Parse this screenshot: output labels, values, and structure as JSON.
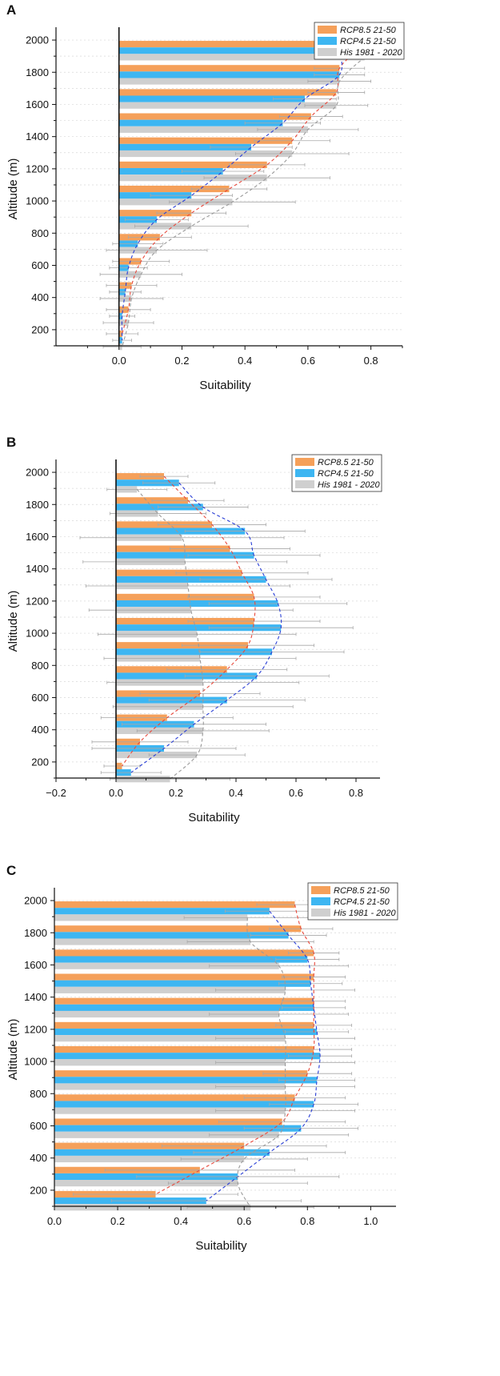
{
  "colors": {
    "rcp85": "#f5a05a",
    "rcp45": "#3db6f2",
    "his": "#cfcfcf",
    "rcp85_line": "#e8483b",
    "rcp45_line": "#2a3fd6",
    "his_line": "#9a9a9a",
    "error": "#a8a8a8"
  },
  "chart_data": [
    {
      "type": "bar",
      "orientation": "horizontal",
      "panel": "A",
      "xlabel": "Suitability",
      "ylabel": "Altitude (m)",
      "xlim": [
        -0.2,
        0.9
      ],
      "ylim": [
        100,
        2050
      ],
      "xticks": [
        0.0,
        0.2,
        0.4,
        0.6,
        0.8
      ],
      "xtick_labels": [
        "0.0",
        "0.2",
        "0.4",
        "0.6",
        "0.8"
      ],
      "yticks": [
        200,
        400,
        600,
        800,
        1000,
        1200,
        1400,
        1600,
        1800,
        2000
      ],
      "ytick_labels": [
        "200",
        "400",
        "600",
        "800",
        "1000",
        "1200",
        "1400",
        "1600",
        "1800",
        "2000"
      ],
      "legend": [
        "RCP8.5 21-50",
        "RCP4.5 21-50",
        "His 1981 - 2020"
      ],
      "legend_position": "top-right",
      "altitudes": [
        2000,
        1850,
        1700,
        1550,
        1400,
        1250,
        1100,
        950,
        800,
        650,
        500,
        350,
        200
      ],
      "series": [
        {
          "name": "RCP8.5 21-50",
          "values": [
            0.78,
            0.7,
            0.69,
            0.61,
            0.55,
            0.47,
            0.35,
            0.23,
            0.13,
            0.07,
            0.04,
            0.03,
            0.01
          ],
          "errors": [
            0.08,
            0.08,
            0.09,
            0.1,
            0.12,
            0.12,
            0.12,
            0.11,
            0.1,
            0.09,
            0.08,
            0.07,
            0.05
          ]
        },
        {
          "name": "RCP4.5 21-50",
          "values": [
            0.7,
            0.7,
            0.59,
            0.52,
            0.42,
            0.33,
            0.23,
            0.12,
            0.06,
            0.03,
            0.02,
            0.01,
            0.01
          ],
          "errors": [
            0.08,
            0.08,
            0.1,
            0.12,
            0.13,
            0.13,
            0.13,
            0.1,
            0.08,
            0.06,
            0.05,
            0.04,
            0.03
          ]
        },
        {
          "name": "His 1981 - 2020",
          "values": [
            0.78,
            0.7,
            0.69,
            0.6,
            0.55,
            0.47,
            0.36,
            0.23,
            0.12,
            0.07,
            0.04,
            0.03,
            0.01
          ],
          "errors": [
            0.08,
            0.1,
            0.1,
            0.16,
            0.18,
            0.2,
            0.2,
            0.18,
            0.16,
            0.13,
            0.1,
            0.08,
            0.06
          ]
        }
      ]
    },
    {
      "type": "bar",
      "orientation": "horizontal",
      "panel": "B",
      "xlabel": "Suitability",
      "ylabel": "Altitude (m)",
      "xlim": [
        -0.2,
        0.88
      ],
      "ylim": [
        100,
        2050
      ],
      "xticks": [
        -0.2,
        0.0,
        0.2,
        0.4,
        0.6,
        0.8
      ],
      "xtick_labels": [
        "−0.2",
        "0.0",
        "0.2",
        "0.4",
        "0.6",
        "0.8"
      ],
      "yticks": [
        200,
        400,
        600,
        800,
        1000,
        1200,
        1400,
        1600,
        1800,
        2000
      ],
      "ytick_labels": [
        "200",
        "400",
        "600",
        "800",
        "1000",
        "1200",
        "1400",
        "1600",
        "1800",
        "2000"
      ],
      "legend": [
        "RCP8.5 21-50",
        "RCP4.5 21-50",
        "His 1981 - 2020"
      ],
      "legend_position": "top-right",
      "altitudes": [
        2000,
        1850,
        1700,
        1550,
        1400,
        1250,
        1100,
        950,
        800,
        650,
        500,
        350,
        200
      ],
      "series": [
        {
          "name": "RCP8.5 21-50",
          "values": [
            0.16,
            0.24,
            0.32,
            0.38,
            0.42,
            0.46,
            0.46,
            0.44,
            0.37,
            0.28,
            0.17,
            0.08,
            0.02
          ],
          "errors": [
            0.08,
            0.12,
            0.18,
            0.2,
            0.22,
            0.22,
            0.22,
            0.22,
            0.2,
            0.2,
            0.22,
            0.16,
            0.06
          ]
        },
        {
          "name": "RCP4.5 21-50",
          "values": [
            0.21,
            0.29,
            0.43,
            0.46,
            0.5,
            0.54,
            0.55,
            0.52,
            0.47,
            0.37,
            0.26,
            0.16,
            0.05
          ],
          "errors": [
            0.12,
            0.15,
            0.2,
            0.22,
            0.22,
            0.23,
            0.24,
            0.24,
            0.24,
            0.26,
            0.24,
            0.24,
            0.1
          ]
        },
        {
          "name": "His 1981 - 2020",
          "values": [
            0.07,
            0.14,
            0.22,
            0.23,
            0.24,
            0.25,
            0.27,
            0.28,
            0.29,
            0.29,
            0.29,
            0.27,
            0.18
          ],
          "errors": [
            0.1,
            0.16,
            0.34,
            0.34,
            0.34,
            0.34,
            0.33,
            0.32,
            0.32,
            0.3,
            0.22,
            0.16,
            0.2
          ]
        }
      ]
    },
    {
      "type": "bar",
      "orientation": "horizontal",
      "panel": "C",
      "xlabel": "Suitability",
      "ylabel": "Altitude (m)",
      "xlim": [
        0.0,
        1.08
      ],
      "ylim": [
        100,
        2050
      ],
      "xticks": [
        0.0,
        0.2,
        0.4,
        0.6,
        0.8,
        1.0
      ],
      "xtick_labels": [
        "0.0",
        "0.2",
        "0.4",
        "0.6",
        "0.8",
        "1.0"
      ],
      "yticks": [
        200,
        400,
        600,
        800,
        1000,
        1200,
        1400,
        1600,
        1800,
        2000
      ],
      "ytick_labels": [
        "200",
        "400",
        "600",
        "800",
        "1000",
        "1200",
        "1400",
        "1600",
        "1800",
        "2000"
      ],
      "legend": [
        "RCP8.5 21-50",
        "RCP4.5 21-50",
        "His 1981 - 2020"
      ],
      "legend_position": "top-right",
      "altitudes": [
        2000,
        1850,
        1700,
        1550,
        1400,
        1250,
        1100,
        950,
        800,
        650,
        500,
        350,
        200
      ],
      "series": [
        {
          "name": "RCP8.5 21-50",
          "values": [
            0.76,
            0.78,
            0.82,
            0.82,
            0.82,
            0.82,
            0.82,
            0.8,
            0.76,
            0.72,
            0.6,
            0.46,
            0.32
          ],
          "errors": [
            0.12,
            0.1,
            0.08,
            0.1,
            0.1,
            0.12,
            0.12,
            0.14,
            0.16,
            0.2,
            0.26,
            0.3,
            0.26
          ]
        },
        {
          "name": "RCP4.5 21-50",
          "values": [
            0.68,
            0.74,
            0.8,
            0.81,
            0.82,
            0.83,
            0.84,
            0.83,
            0.82,
            0.78,
            0.68,
            0.58,
            0.48
          ],
          "errors": [
            0.14,
            0.12,
            0.1,
            0.1,
            0.1,
            0.1,
            0.1,
            0.12,
            0.14,
            0.18,
            0.24,
            0.32,
            0.3
          ]
        },
        {
          "name": "His 1981 - 2020",
          "values": [
            0.61,
            0.62,
            0.71,
            0.73,
            0.71,
            0.73,
            0.73,
            0.73,
            0.73,
            0.71,
            0.6,
            0.58,
            0.62
          ],
          "errors": [
            0.2,
            0.2,
            0.22,
            0.22,
            0.22,
            0.22,
            0.22,
            0.22,
            0.22,
            0.22,
            0.2,
            0.22,
            0.2
          ]
        }
      ]
    }
  ]
}
